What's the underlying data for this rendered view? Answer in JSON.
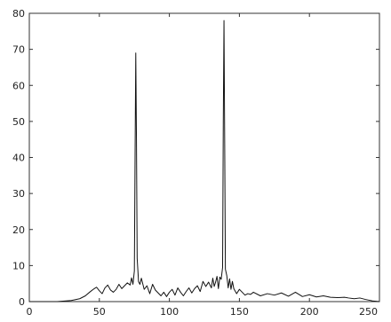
{
  "chart_data": {
    "type": "line",
    "title": "",
    "xlabel": "",
    "ylabel": "",
    "xlim": [
      0,
      250
    ],
    "ylim": [
      0,
      80
    ],
    "grid": false,
    "legend": "none",
    "x_ticks": [
      {
        "value": 0,
        "label": "0"
      },
      {
        "value": 50,
        "label": "50"
      },
      {
        "value": 100,
        "label": "100"
      },
      {
        "value": 150,
        "label": "150"
      },
      {
        "value": 200,
        "label": "200"
      },
      {
        "value": 250,
        "label": "250"
      }
    ],
    "y_ticks": [
      {
        "value": 0,
        "label": "0"
      },
      {
        "value": 10,
        "label": "10"
      },
      {
        "value": 20,
        "label": "20"
      },
      {
        "value": 30,
        "label": "30"
      },
      {
        "value": 40,
        "label": "40"
      },
      {
        "value": 50,
        "label": "50"
      },
      {
        "value": 60,
        "label": "60"
      },
      {
        "value": 70,
        "label": "70"
      },
      {
        "value": 80,
        "label": "80"
      }
    ],
    "series": [
      {
        "color": "#111111",
        "x": [
          0,
          20,
          30,
          36,
          40,
          43,
          46,
          48,
          50,
          52,
          54,
          56,
          58,
          60,
          62,
          64,
          66,
          68,
          70,
          72,
          73,
          74,
          75,
          75.5,
          76,
          76.5,
          77,
          78,
          79,
          80,
          82,
          84,
          86,
          88,
          90,
          92,
          94,
          96,
          98,
          100,
          102,
          104,
          106,
          108,
          110,
          112,
          114,
          116,
          118,
          120,
          122,
          124,
          126,
          128,
          130,
          131,
          132,
          133,
          134,
          135,
          136,
          137,
          138,
          138.5,
          139,
          139.5,
          140,
          141,
          142,
          143,
          144,
          145,
          146,
          148,
          150,
          152,
          154,
          156,
          158,
          160,
          165,
          170,
          175,
          180,
          185,
          190,
          195,
          200,
          205,
          210,
          215,
          220,
          225,
          228,
          232,
          236,
          240,
          245,
          250
        ],
        "y": [
          0,
          0,
          0.3,
          0.8,
          1.6,
          2.6,
          3.5,
          4,
          3,
          2.2,
          3.8,
          4.6,
          3.2,
          2.6,
          3.4,
          4.8,
          3.6,
          4.4,
          5.2,
          4.6,
          6.6,
          4.8,
          8.5,
          40,
          69,
          45,
          12,
          5.5,
          4.8,
          6.5,
          3.4,
          4.4,
          2.2,
          4.8,
          3.2,
          2.4,
          1.6,
          2.6,
          1.4,
          2.6,
          3.4,
          1.8,
          3.8,
          2.6,
          1.6,
          2.8,
          3.8,
          2.4,
          3.6,
          4.4,
          2.8,
          5.6,
          4.2,
          5.4,
          3.8,
          6.5,
          4.2,
          5.4,
          7,
          3.6,
          6.8,
          6.2,
          9.5,
          50,
          78,
          44,
          9,
          7.2,
          3.8,
          6.3,
          3.4,
          5.6,
          3.6,
          2.2,
          3.4,
          2.6,
          1.8,
          2.2,
          2,
          2.6,
          1.6,
          2.2,
          1.8,
          2.4,
          1.5,
          2.6,
          1.4,
          1.9,
          1.3,
          1.6,
          1.2,
          1.1,
          1.2,
          1.0,
          0.8,
          1.0,
          0.6,
          0.2,
          0
        ]
      }
    ]
  }
}
